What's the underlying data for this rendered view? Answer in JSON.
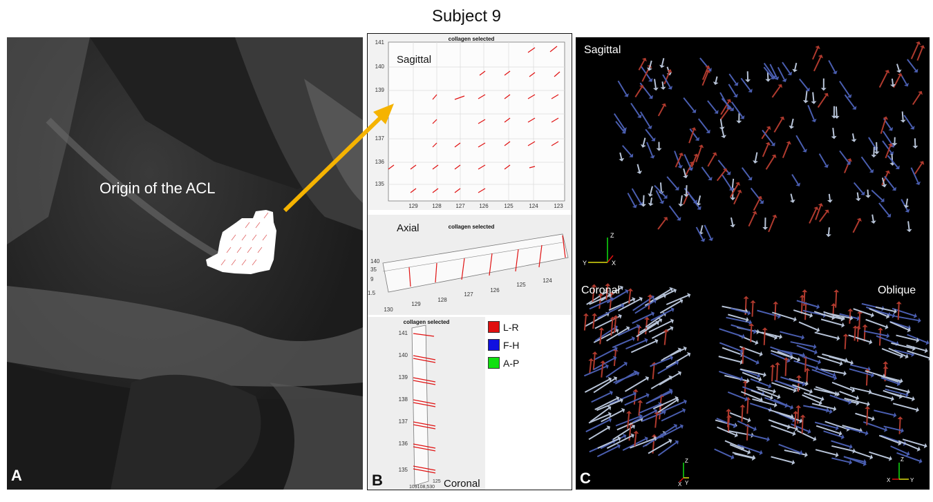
{
  "figure_title": "Subject 9",
  "panel_a": {
    "letter": "A",
    "annotation": "Origin of the ACL"
  },
  "panel_b": {
    "letter": "B",
    "sagittal": {
      "view_label": "Sagittal",
      "plot_title": "collagen selected",
      "y_ticks": [
        "141",
        "140",
        "139",
        "137",
        "136",
        "135"
      ],
      "x_ticks": [
        "129",
        "128",
        "127",
        "126",
        "125",
        "124",
        "123"
      ]
    },
    "axial": {
      "view_label": "Axial",
      "plot_title": "collagen selected",
      "left_ticks": [
        "140",
        "35",
        "9",
        "1.5"
      ],
      "x_ticks": [
        "130",
        "129",
        "128",
        "127",
        "126",
        "125",
        "124"
      ]
    },
    "coronal": {
      "view_label": "Coronal",
      "plot_title": "collagen selected",
      "y_ticks": [
        "141",
        "140",
        "139",
        "138",
        "137",
        "136",
        "135"
      ],
      "bottom_ticks": "109108,530",
      "right_tick": "125"
    },
    "legend": [
      {
        "label": "L-R",
        "color": "#e01010"
      },
      {
        "label": "F-H",
        "color": "#1010e0"
      },
      {
        "label": "A-P",
        "color": "#10e010"
      }
    ]
  },
  "panel_c": {
    "letter": "C",
    "sagittal_label": "Sagittal",
    "coronal_label": "Coronal",
    "oblique_label": "Oblique",
    "axes_sagittal": {
      "z": "Z",
      "y": "Y",
      "x": "X"
    },
    "axes_coronal": {
      "z": "Z",
      "y": "Y",
      "x": "X"
    },
    "axes_oblique": {
      "z": "Z",
      "y": "Y",
      "x": "X"
    },
    "colors": {
      "red": "#b03a2e",
      "blue": "#4a5eb0",
      "gray": "#b8c4d8"
    }
  },
  "arrow_color": "#f5b301"
}
